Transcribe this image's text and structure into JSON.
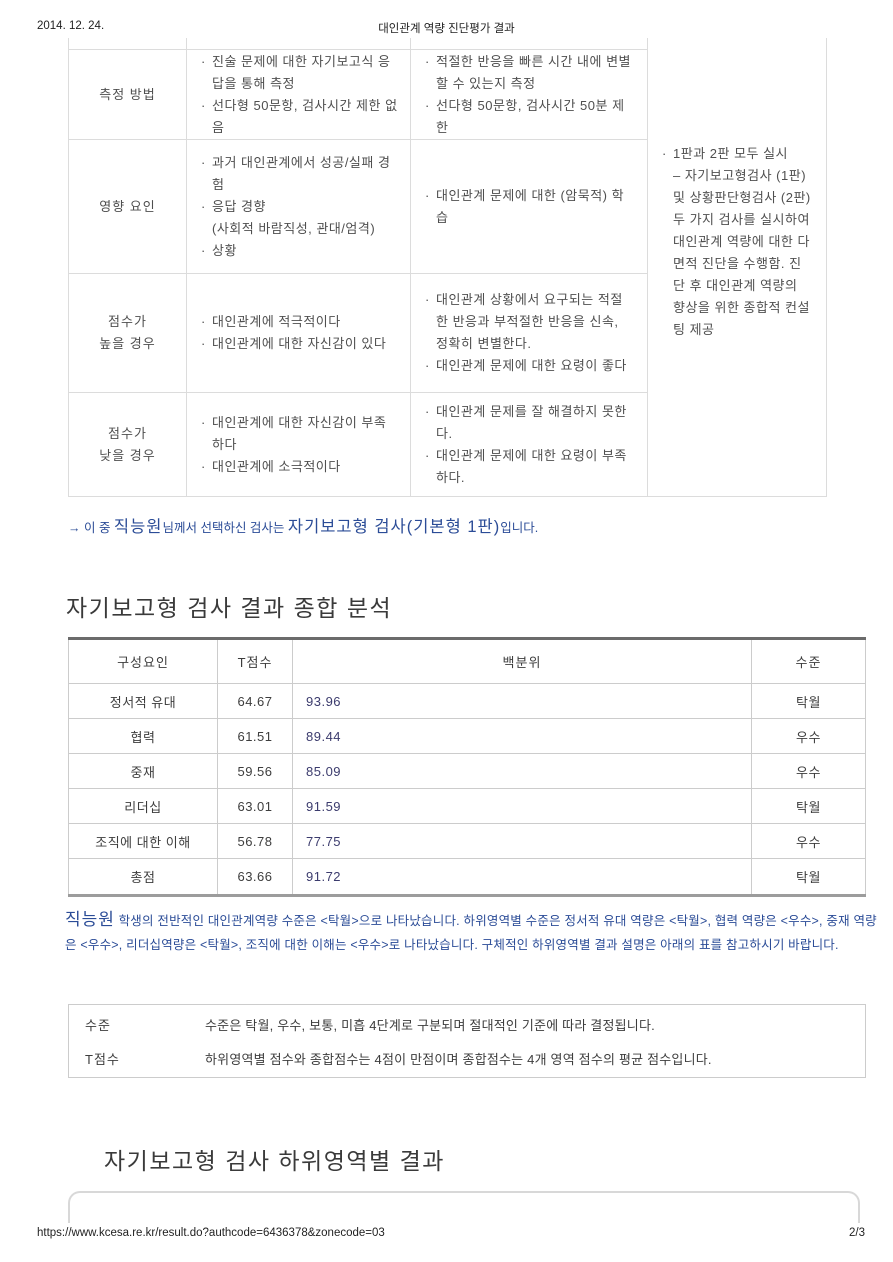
{
  "print_header": {
    "date": "2014. 12. 24.",
    "title": "대인관계 역량 진단평가 결과"
  },
  "print_footer": {
    "url": "https://www.kcesa.re.kr/result.do?authcode=6436378&zonecode=03",
    "page_number": "2/3"
  },
  "comparison_table": {
    "rows": [
      {
        "label": "측정 방법",
        "self_report": [
          "진술 문제에 대한 자기보고식 응답을 통해 측정",
          "선다형 50문항, 검사시간 제한 없음"
        ],
        "situational": [
          "적절한 반응을 빠른 시간 내에 변별 할 수 있는지 측정",
          "선다형 50문항, 검사시간 50분 제한"
        ]
      },
      {
        "label": "영향 요인",
        "self_report": [
          "과거 대인관계에서 성공/실패 경험",
          "응답 경향\n(사회적 바람직성, 관대/엄격)",
          "상황"
        ],
        "situational": [
          "대인관계 문제에 대한 (암묵적) 학습"
        ]
      },
      {
        "label": "점수가\n높을 경우",
        "self_report": [
          "대인관계에 적극적이다",
          "대인관계에 대한 자신감이 있다"
        ],
        "situational": [
          "대인관계 상황에서 요구되는 적절한 반응과 부적절한 반응을 신속, 정확히 변별한다.",
          "대인관계 문제에 대한 요령이 좋다"
        ]
      },
      {
        "label": "점수가\n낮을 경우",
        "self_report": [
          "대인관계에 대한 자신감이 부족하다",
          "대인관계에 소극적이다"
        ],
        "situational": [
          "대인관계 문제를 잘 해결하지 못한다.",
          "대인관계 문제에 대한 요령이 부족하다."
        ]
      }
    ],
    "sidebar": {
      "bullet": "1판과 2판 모두 실시",
      "detail": "– 자기보고형검사 (1판) 및 상황판단형검사 (2판)두 가지 검사를 실시하여 대인관계 역량에 대한 다면적 진단을 수행함. 진단 후 대인관계 역량의 향상을 위한 종합적 컨설팅 제공"
    }
  },
  "selection_note": {
    "prefix": "→ 이 중 ",
    "name": "직능원",
    "middle": "님께서 선택하신 검사는 ",
    "test_name": "자기보고형 검사(기본형 1판)",
    "suffix": "입니다."
  },
  "summary_section": {
    "title": "자기보고형 검사 결과 종합 분석"
  },
  "summary_table": {
    "columns": [
      "구성요인",
      "T점수",
      "백분위",
      "수준"
    ],
    "rows": [
      [
        "정서적 유대",
        "64.67",
        "93.96",
        "탁월"
      ],
      [
        "협력",
        "61.51",
        "89.44",
        "우수"
      ],
      [
        "중재",
        "59.56",
        "85.09",
        "우수"
      ],
      [
        "리더십",
        "63.01",
        "91.59",
        "탁월"
      ],
      [
        "조직에 대한 이해",
        "56.78",
        "77.75",
        "우수"
      ],
      [
        "총점",
        "63.66",
        "91.72",
        "탁월"
      ]
    ]
  },
  "analysis_paragraph": {
    "name": "직능원",
    "text": " 학생의 전반적인 대인관계역량 수준은 <탁월>으로 나타났습니다. 하위영역별 수준은 정서적 유대 역량은 <탁월>, 협력 역량은 <우수>, 중재 역량은 <우수>, 리더십역량은 <탁월>, 조직에 대한 이해는 <우수>로 나타났습니다. 구체적인 하위영역별 결과 설명은 아래의 표를 참고하시기 바랍니다."
  },
  "legend_box": {
    "rows": [
      {
        "term": "수준",
        "desc": "수준은 탁월, 우수, 보통, 미흡 4단계로 구분되며 절대적인 기준에 따라 결정됩니다."
      },
      {
        "term": "T점수",
        "desc": "하위영역별 점수와 종합점수는 4점이 만점이며 종합점수는 4개 영역 점수의 평균 점수입니다."
      }
    ]
  },
  "subarea_section": {
    "title": "자기보고형 검사 하위영역별 결과"
  }
}
